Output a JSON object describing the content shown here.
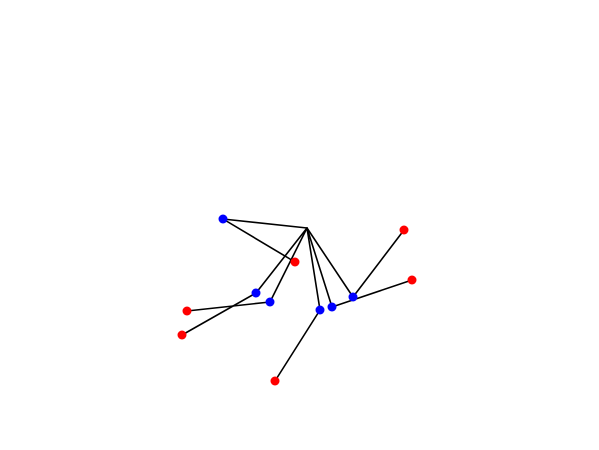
{
  "colors": {
    "background": "#ffffff",
    "edge": "#000000",
    "node_blue": "#0000ff",
    "node_red": "#ff0000"
  },
  "graph": {
    "hub": "h",
    "nodes": [
      {
        "id": "h",
        "type": "hub"
      },
      {
        "id": "b1",
        "type": "blue"
      },
      {
        "id": "b2",
        "type": "blue"
      },
      {
        "id": "b3",
        "type": "blue"
      },
      {
        "id": "b4",
        "type": "blue"
      },
      {
        "id": "b5",
        "type": "blue"
      },
      {
        "id": "b6",
        "type": "blue"
      },
      {
        "id": "r1",
        "type": "red"
      },
      {
        "id": "r2",
        "type": "red"
      },
      {
        "id": "r3",
        "type": "red"
      },
      {
        "id": "r4",
        "type": "red"
      },
      {
        "id": "r5",
        "type": "red"
      },
      {
        "id": "r6",
        "type": "red"
      }
    ],
    "edges": [
      [
        "h",
        "b1"
      ],
      [
        "h",
        "b2"
      ],
      [
        "h",
        "b3"
      ],
      [
        "h",
        "b4"
      ],
      [
        "h",
        "b5"
      ],
      [
        "h",
        "b6"
      ],
      [
        "b1",
        "r1"
      ],
      [
        "b2",
        "r2"
      ],
      [
        "b3",
        "r3"
      ],
      [
        "b4",
        "r4"
      ],
      [
        "b5",
        "r5"
      ],
      [
        "b6",
        "r6"
      ]
    ]
  }
}
